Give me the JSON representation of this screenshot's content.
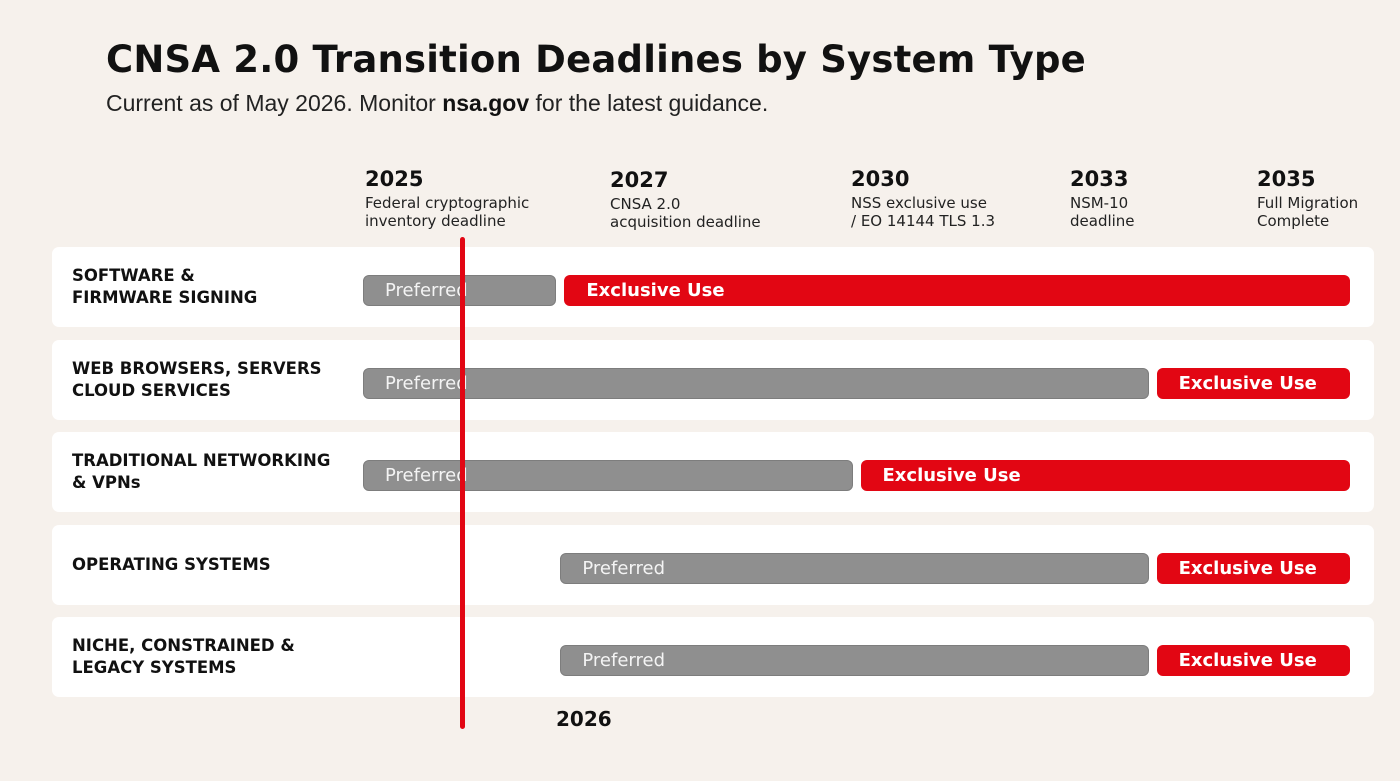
{
  "title": "CNSA 2.0 Transition Deadlines by System Type",
  "subtitle": {
    "before": "Current as of May 2026. Monitor ",
    "link": "nsa.gov",
    "after": " for the latest guidance."
  },
  "colors": {
    "background": "#f6f1ec",
    "preferred": "#8f8f8f",
    "exclusive": "#e20613",
    "current_year_marker": "#e20613"
  },
  "chart_data": {
    "type": "gantt",
    "axis_range": [
      2024.95,
      2035.85
    ],
    "milestones": [
      {
        "year": "2025",
        "description": "Federal cryptographic\ninventory deadline"
      },
      {
        "year": "2027",
        "description": "CNSA 2.0\nacquisition deadline"
      },
      {
        "year": "2030",
        "description": "NSS exclusive use\n/ EO 14144 TLS 1.3"
      },
      {
        "year": "2033",
        "description": "NSM-10\ndeadline"
      },
      {
        "year": "2035",
        "description": "Full Migration\nComplete"
      }
    ],
    "current_marker": {
      "year": 2026,
      "label": "2026"
    },
    "rows": [
      {
        "label": "SOFTWARE &\nFIRMWARE SIGNING",
        "segments": [
          {
            "label": "Preferred",
            "kind": "preferred",
            "start": 2025,
            "end": 2027
          },
          {
            "label": "Exclusive Use",
            "kind": "exclusive",
            "start": 2027,
            "end": 2035
          }
        ]
      },
      {
        "label": "WEB BROWSERS, SERVERS\nCLOUD SERVICES",
        "segments": [
          {
            "label": "Preferred",
            "kind": "preferred",
            "start": 2025,
            "end": 2033
          },
          {
            "label": "Exclusive Use",
            "kind": "exclusive",
            "start": 2033,
            "end": 2035
          }
        ]
      },
      {
        "label": "TRADITIONAL NETWORKING\n& VPNs",
        "segments": [
          {
            "label": "Preferred",
            "kind": "preferred",
            "start": 2025,
            "end": 2030
          },
          {
            "label": "Exclusive Use",
            "kind": "exclusive",
            "start": 2030,
            "end": 2035
          }
        ]
      },
      {
        "label": "OPERATING SYSTEMS",
        "segments": [
          {
            "label": "Preferred",
            "kind": "preferred",
            "start": 2027,
            "end": 2033
          },
          {
            "label": "Exclusive Use",
            "kind": "exclusive",
            "start": 2033,
            "end": 2035
          }
        ]
      },
      {
        "label": "NICHE, CONSTRAINED &\nLEGACY SYSTEMS",
        "segments": [
          {
            "label": "Preferred",
            "kind": "preferred",
            "start": 2027,
            "end": 2033
          },
          {
            "label": "Exclusive Use",
            "kind": "exclusive",
            "start": 2033,
            "end": 2035
          }
        ]
      }
    ]
  }
}
